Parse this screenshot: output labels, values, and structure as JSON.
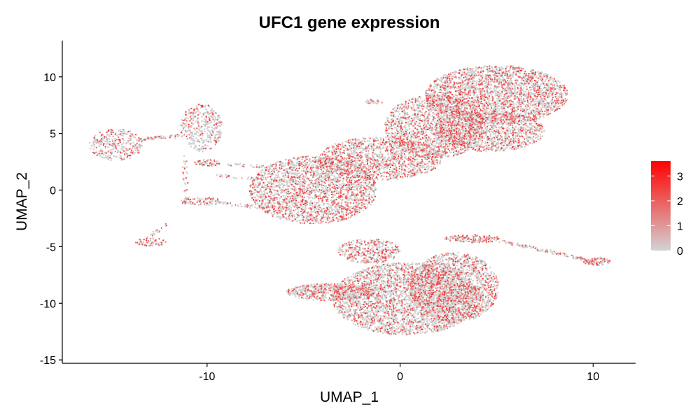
{
  "chart_data": {
    "type": "scatter",
    "title": "UFC1 gene expression",
    "xlabel": "UMAP_1",
    "ylabel": "UMAP_2",
    "xlim": [
      -17.5,
      12.2
    ],
    "ylim": [
      -15.3,
      13.2
    ],
    "x_ticks": [
      -10,
      0,
      10
    ],
    "x_tick_labels": [
      "-10",
      "0",
      "10"
    ],
    "y_ticks": [
      -15,
      -10,
      -5,
      0,
      5,
      10
    ],
    "y_tick_labels": [
      "-15",
      "-10",
      "-5",
      "0",
      "5",
      "10"
    ],
    "grid": false,
    "legend": {
      "type": "colorbar",
      "placement": "right",
      "min": 0,
      "max": 3.6,
      "ticks": [
        0,
        1,
        2,
        3
      ],
      "tick_labels": [
        "0",
        "1",
        "2",
        "3"
      ],
      "low_color": "#d3d3d3",
      "high_color": "#ff0000"
    },
    "clusters": [
      {
        "cx": -14.7,
        "cy": 4.0,
        "rx": 1.4,
        "ry": 1.4,
        "density": 320,
        "expr_rate": 0.35
      },
      {
        "cx": -10.3,
        "cy": 5.5,
        "rx": 1.1,
        "ry": 2.1,
        "density": 360,
        "expr_rate": 0.3
      },
      {
        "cx": -12.9,
        "cy": -4.6,
        "rx": 0.8,
        "ry": 0.35,
        "density": 60,
        "expr_rate": 0.5
      },
      {
        "cx": -10.0,
        "cy": 2.4,
        "rx": 0.7,
        "ry": 0.3,
        "density": 60,
        "expr_rate": 0.4
      },
      {
        "cx": -10.3,
        "cy": -1.0,
        "rx": 1.1,
        "ry": 0.35,
        "density": 80,
        "expr_rate": 0.35
      },
      {
        "cx": -4.5,
        "cy": 0.0,
        "rx": 3.3,
        "ry": 3.0,
        "density": 2300,
        "expr_rate": 0.4
      },
      {
        "cx": -1.0,
        "cy": 2.8,
        "rx": 3.2,
        "ry": 1.9,
        "density": 1300,
        "expr_rate": 0.4
      },
      {
        "cx": 1.8,
        "cy": 5.6,
        "rx": 2.6,
        "ry": 2.8,
        "density": 1500,
        "expr_rate": 0.38
      },
      {
        "cx": 5.0,
        "cy": 8.4,
        "rx": 3.7,
        "ry": 2.6,
        "density": 2500,
        "expr_rate": 0.36
      },
      {
        "cx": 4.6,
        "cy": 5.2,
        "rx": 2.9,
        "ry": 1.8,
        "density": 1200,
        "expr_rate": 0.34
      },
      {
        "cx": 0.3,
        "cy": -9.6,
        "rx": 3.8,
        "ry": 3.2,
        "density": 3000,
        "expr_rate": 0.3
      },
      {
        "cx": 2.8,
        "cy": -8.6,
        "rx": 2.3,
        "ry": 3.1,
        "density": 1700,
        "expr_rate": 0.3
      },
      {
        "cx": -3.6,
        "cy": -9.0,
        "rx": 2.3,
        "ry": 0.75,
        "density": 600,
        "expr_rate": 0.32
      },
      {
        "cx": -1.6,
        "cy": -5.4,
        "rx": 1.6,
        "ry": 1.1,
        "density": 380,
        "expr_rate": 0.4
      },
      {
        "cx": 3.8,
        "cy": -4.3,
        "rx": 1.5,
        "ry": 0.35,
        "density": 150,
        "expr_rate": 0.5
      },
      {
        "cx": 10.2,
        "cy": -6.3,
        "rx": 0.7,
        "ry": 0.35,
        "density": 90,
        "expr_rate": 0.45
      },
      {
        "cx": -1.4,
        "cy": 7.8,
        "rx": 0.5,
        "ry": 0.2,
        "density": 25,
        "expr_rate": 0.4
      }
    ],
    "bridges": [
      {
        "x0": -13.4,
        "y0": 4.5,
        "x1": -11.3,
        "y1": 4.8,
        "n": 60
      },
      {
        "x0": -11.2,
        "y0": 3.0,
        "x1": -11.0,
        "y1": -1.5,
        "n": 40
      },
      {
        "x0": -9.4,
        "y0": -1.1,
        "x1": -7.0,
        "y1": -1.6,
        "n": 40
      },
      {
        "x0": -9.0,
        "y0": 2.3,
        "x1": -6.6,
        "y1": 2.0,
        "n": 30
      },
      {
        "x0": 5.2,
        "y0": -4.5,
        "x1": 9.8,
        "y1": -6.2,
        "n": 120
      },
      {
        "x0": -13.3,
        "y0": -4.4,
        "x1": -12.0,
        "y1": -3.0,
        "n": 20
      },
      {
        "x0": -7.2,
        "y0": 1.0,
        "x1": -9.4,
        "y1": 1.3,
        "n": 30
      }
    ]
  }
}
